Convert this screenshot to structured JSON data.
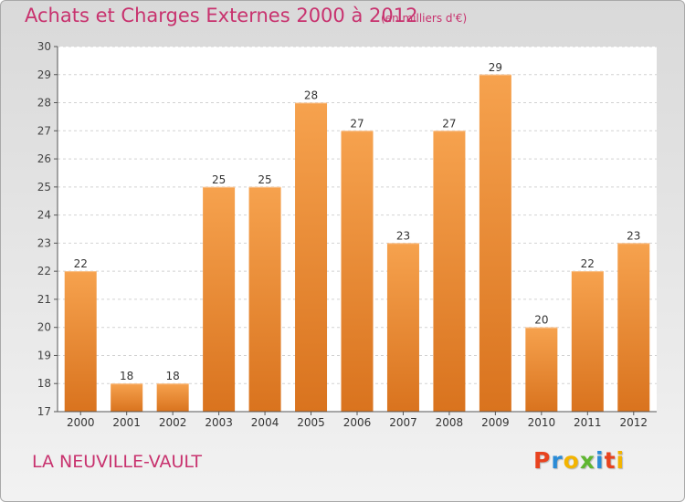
{
  "header": {
    "title": "Achats et Charges Externes 2000 à 2012",
    "subtitle": "(en milliers d'€)"
  },
  "footer": {
    "place": "LA NEUVILLE-VAULT",
    "logo_letters": [
      "P",
      "r",
      "o",
      "x",
      "i",
      "t",
      "i"
    ]
  },
  "colors": {
    "bar_top": "#f6a24e",
    "bar_bottom": "#d9731e",
    "accent": "#c8326e",
    "logo_letters": [
      "#e8431f",
      "#2a8bd6",
      "#f3b400",
      "#5fb630",
      "#2a8bd6",
      "#e8431f",
      "#f3b400"
    ]
  },
  "chart_data": {
    "type": "bar",
    "title": "Achats et Charges Externes 2000 à 2012",
    "subtitle": "(en milliers d'€)",
    "categories": [
      "2000",
      "2001",
      "2002",
      "2003",
      "2004",
      "2005",
      "2006",
      "2007",
      "2008",
      "2009",
      "2010",
      "2011",
      "2012"
    ],
    "values": [
      22,
      18,
      18,
      25,
      25,
      28,
      27,
      23,
      27,
      29,
      20,
      22,
      23
    ],
    "ylim": [
      17,
      30
    ],
    "yticks": [
      17,
      18,
      19,
      20,
      21,
      22,
      23,
      24,
      25,
      26,
      27,
      28,
      29,
      30
    ],
    "grid": true,
    "data_labels": true
  }
}
